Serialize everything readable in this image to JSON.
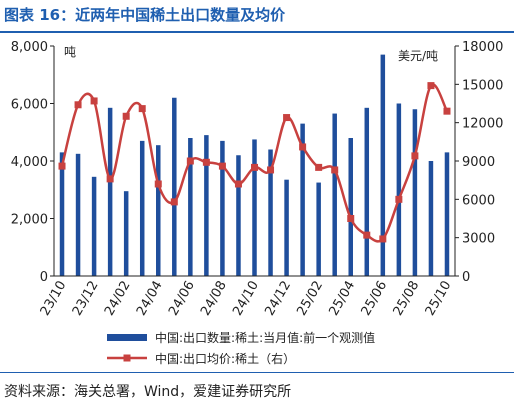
{
  "title": "图表 16：近两年中国稀土出口数量及均价",
  "source": "资料来源：海关总署，Wind，爱建证券研究所",
  "colors": {
    "bar": "#1f4e9c",
    "line": "#c8413f",
    "accent": "#1f5fb0"
  },
  "chart_data": {
    "type": "bar+line",
    "title": "近两年中国稀土出口数量及均价",
    "x_tick_labels": [
      "23/10",
      "23/12",
      "24/02",
      "24/04",
      "24/06",
      "24/08",
      "24/10",
      "24/12",
      "25/02",
      "25/04",
      "25/06",
      "25/08",
      "25/10"
    ],
    "x": [
      "23/10",
      "23/11",
      "23/12",
      "24/01",
      "24/02",
      "24/03",
      "24/04",
      "24/05",
      "24/06",
      "24/07",
      "24/08",
      "24/09",
      "24/10",
      "24/11",
      "24/12",
      "25/01",
      "25/02",
      "25/03",
      "25/04",
      "25/05",
      "25/06",
      "25/07",
      "25/08",
      "25/09",
      "25/10"
    ],
    "left_axis": {
      "unit": "吨",
      "ylim": [
        0,
        8000
      ],
      "ticks": [
        "0",
        "2,000",
        "4,000",
        "6,000",
        "8,000"
      ]
    },
    "right_axis": {
      "unit": "美元/吨",
      "ylim": [
        0,
        18000
      ],
      "ticks": [
        "0",
        "3000",
        "6000",
        "9000",
        "12000",
        "15000",
        "18000"
      ]
    },
    "legend_position": "bottom",
    "series": [
      {
        "name": "中国:出口数量:稀土:当月值:前一个观测值",
        "type": "bar",
        "axis": "left",
        "values": [
          4300,
          4250,
          3450,
          5850,
          2950,
          4700,
          4550,
          6200,
          4800,
          4900,
          4700,
          4200,
          4750,
          4400,
          3350,
          5300,
          3250,
          5650,
          4800,
          5850,
          7700,
          6000,
          5800,
          4000,
          4300
        ]
      },
      {
        "name": "中国:出口均价:稀土（右）",
        "type": "line",
        "axis": "right",
        "values": [
          8600,
          13400,
          13700,
          7600,
          12500,
          13100,
          7200,
          5800,
          9000,
          8900,
          8600,
          7200,
          8500,
          8300,
          12400,
          10100,
          8500,
          8300,
          4500,
          3200,
          2900,
          6000,
          9400,
          14900,
          12900
        ]
      }
    ]
  }
}
